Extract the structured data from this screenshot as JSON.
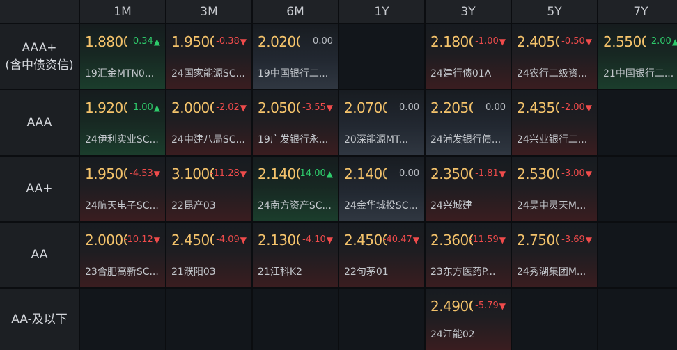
{
  "columns": [
    "1M",
    "3M",
    "6M",
    "1Y",
    "3Y",
    "5Y",
    "7Y"
  ],
  "rows": [
    {
      "label_line1": "AAA+",
      "label_line2": "(含中债资信)",
      "cells": [
        {
          "rate": "1.8800",
          "change": "0.34",
          "dir": "up",
          "name": "19汇金MTN0..."
        },
        {
          "rate": "1.9500",
          "change": "-0.38",
          "dir": "down",
          "name": "24国家能源SC..."
        },
        {
          "rate": "2.0200",
          "change": "0.00",
          "dir": "flat",
          "name": "19中国银行二..."
        },
        null,
        {
          "rate": "2.1800",
          "change": "-1.00",
          "dir": "down",
          "name": "24建行债01A"
        },
        {
          "rate": "2.4050",
          "change": "-0.50",
          "dir": "down",
          "name": "24农行二级资..."
        },
        {
          "rate": "2.5500",
          "change": "2.00",
          "dir": "up",
          "name": "21中国银行二..."
        }
      ]
    },
    {
      "label_line1": "AAA",
      "label_line2": "",
      "cells": [
        {
          "rate": "1.9200",
          "change": "1.00",
          "dir": "up",
          "name": "24伊利实业SC..."
        },
        {
          "rate": "2.0000",
          "change": "-2.02",
          "dir": "down",
          "name": "24中建八局SC..."
        },
        {
          "rate": "2.0500",
          "change": "-3.55",
          "dir": "down",
          "name": "19广发银行永..."
        },
        {
          "rate": "2.0700",
          "change": "0.00",
          "dir": "flat",
          "name": "20深能源MT..."
        },
        {
          "rate": "2.2050",
          "change": "0.00",
          "dir": "flat",
          "name": "24浦发银行债..."
        },
        {
          "rate": "2.4350",
          "change": "-2.00",
          "dir": "down",
          "name": "24兴业银行二..."
        },
        null
      ]
    },
    {
      "label_line1": "AA+",
      "label_line2": "",
      "cells": [
        {
          "rate": "1.9500",
          "change": "-4.53",
          "dir": "down",
          "name": "24航天电子SC..."
        },
        {
          "rate": "3.1000",
          "change": "-11.28",
          "dir": "down",
          "name": "22昆产03"
        },
        {
          "rate": "2.1400",
          "change": "14.00",
          "dir": "up",
          "name": "24南方资产SC..."
        },
        {
          "rate": "2.1400",
          "change": "0.00",
          "dir": "flat",
          "name": "24金华城投SC..."
        },
        {
          "rate": "2.3500",
          "change": "-1.81",
          "dir": "down",
          "name": "24兴城建"
        },
        {
          "rate": "2.5300",
          "change": "-3.00",
          "dir": "down",
          "name": "24吴中灵天M..."
        },
        null
      ]
    },
    {
      "label_line1": "AA",
      "label_line2": "",
      "cells": [
        {
          "rate": "2.0000",
          "change": "-10.12",
          "dir": "down",
          "name": "23合肥高新SC..."
        },
        {
          "rate": "2.4500",
          "change": "-4.09",
          "dir": "down",
          "name": "21濮阳03"
        },
        {
          "rate": "2.1300",
          "change": "-4.10",
          "dir": "down",
          "name": "21江科K2"
        },
        {
          "rate": "2.4500",
          "change": "-40.47",
          "dir": "down",
          "name": "22句茅01"
        },
        {
          "rate": "2.3600",
          "change": "-11.59",
          "dir": "down",
          "name": "23东方医药P..."
        },
        {
          "rate": "2.7500",
          "change": "-3.69",
          "dir": "down",
          "name": "24秀湖集团M..."
        },
        null
      ]
    },
    {
      "label_line1": "AA-及以下",
      "label_line2": "",
      "cells": [
        null,
        null,
        null,
        null,
        {
          "rate": "2.4900",
          "change": "-5.79",
          "dir": "down",
          "name": "24江能02"
        },
        null,
        null
      ]
    }
  ],
  "colors": {
    "rate": "#f4c36b",
    "up": "#2ecb6b",
    "down": "#ef4b4b",
    "flat": "#b8bcc2"
  },
  "icons": {
    "up": "triangle-up-icon",
    "down": "triangle-down-icon"
  }
}
